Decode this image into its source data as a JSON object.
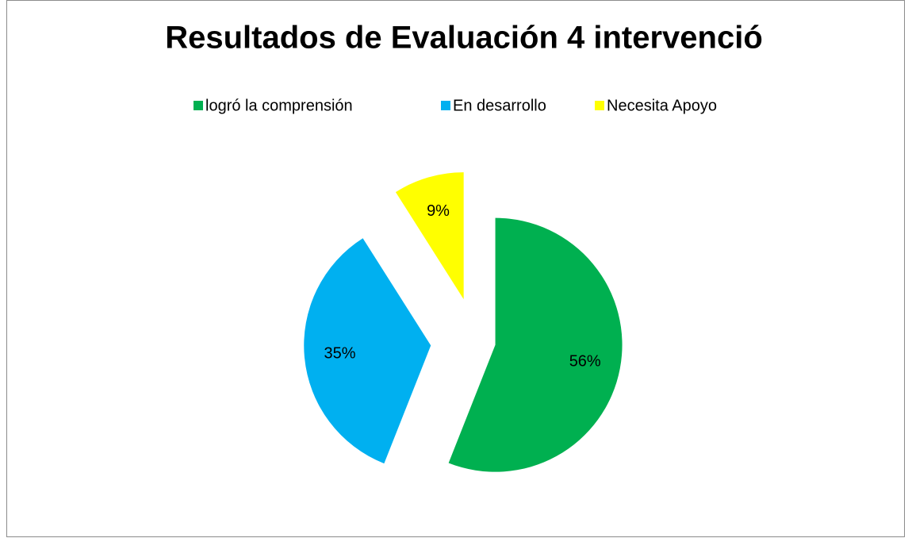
{
  "chart_data": {
    "type": "pie",
    "title": "Resultados de Evaluación 4 intervenció",
    "categories": [
      "logró la comprensión",
      "En desarrollo",
      "Necesita Apoyo"
    ],
    "values": [
      56,
      35,
      9
    ],
    "value_labels": [
      "56%",
      "35%",
      "9%"
    ],
    "colors": [
      "#00b050",
      "#00b0f0",
      "#ffff00"
    ],
    "legend": "top"
  }
}
